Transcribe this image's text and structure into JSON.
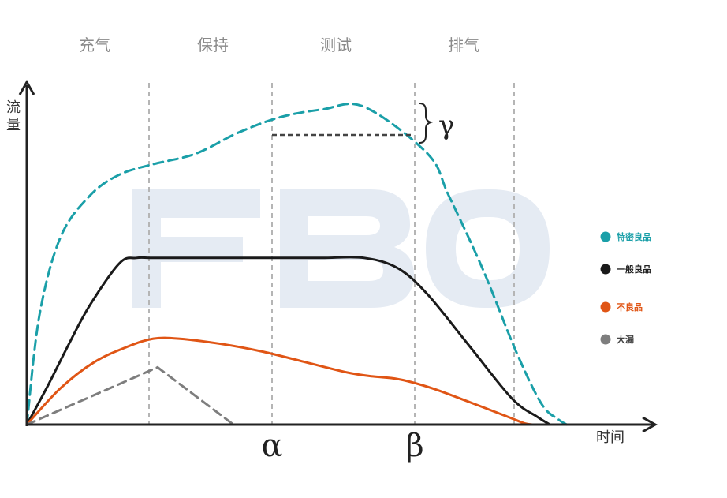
{
  "chart_data": {
    "type": "line",
    "phases": [
      "充气",
      "保持",
      "测试",
      "排气"
    ],
    "ylabel": "流量",
    "xlabel": "时间",
    "x_markers": [
      "α",
      "β"
    ],
    "delta_label": "γ",
    "watermark": "FBO",
    "series": [
      {
        "name": "特密良品",
        "color": "#1a9fa8",
        "dash": "dashed",
        "x": [
          0,
          3,
          8,
          15,
          22,
          30,
          40,
          50,
          60,
          70,
          80,
          95,
          100,
          108,
          116,
          122,
          126,
          128
        ],
        "y": [
          0,
          42,
          72,
          88,
          96,
          100,
          104,
          112,
          118,
          121,
          122,
          104,
          88,
          60,
          28,
          8,
          2,
          0
        ]
      },
      {
        "name": "一般良品",
        "color": "#1a1a1a",
        "dash": "solid",
        "x": [
          0,
          5,
          10,
          15,
          22,
          26,
          30,
          40,
          50,
          60,
          70,
          80,
          88,
          95,
          105,
          115,
          121,
          124
        ],
        "y": [
          0,
          15,
          31,
          46,
          62,
          64,
          64,
          64,
          64,
          64,
          64,
          64,
          60,
          50,
          30,
          10,
          3,
          0
        ]
      },
      {
        "name": "不良品",
        "color": "#e05515",
        "dash": "solid",
        "x": [
          0,
          8,
          16,
          24,
          30,
          36,
          46,
          56,
          66,
          76,
          82,
          88,
          96,
          106,
          114,
          118,
          120
        ],
        "y": [
          0,
          14,
          24,
          30,
          33,
          33,
          31,
          28,
          24,
          20,
          18.5,
          17.5,
          14,
          8,
          3,
          0.5,
          0
        ]
      },
      {
        "name": "大漏",
        "color": "#7e7e7e",
        "dash": "dashed",
        "x": [
          0,
          31,
          49
        ],
        "y": [
          0,
          22,
          0
        ]
      }
    ]
  }
}
